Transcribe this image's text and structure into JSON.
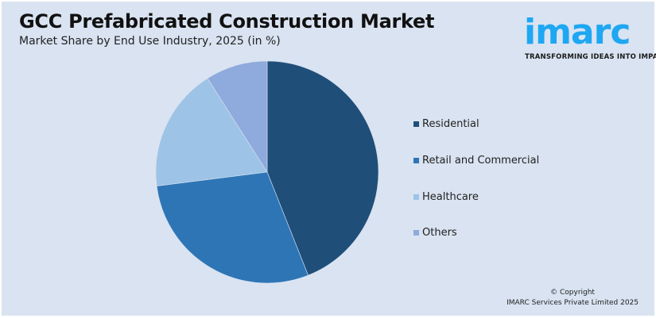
{
  "header": {
    "title": "GCC Prefabricated Construction Market",
    "subtitle": "Market Share by End Use Industry, 2025 (in %)"
  },
  "logo": {
    "word": "imarc",
    "tagline": "TRANSFORMING IDEAS INTO IMPACT",
    "color": "#1ea7f2"
  },
  "footer": {
    "line1": "© Copyright",
    "line2": "IMARC Services Private Limited 2025"
  },
  "legend": [
    {
      "label": "Residential",
      "color": "#1f4e79"
    },
    {
      "label": "Retail and Commercial",
      "color": "#2e75b6"
    },
    {
      "label": "Healthcare",
      "color": "#9dc3e6"
    },
    {
      "label": "Others",
      "color": "#8faadc"
    }
  ],
  "chart_data": {
    "type": "pie",
    "title": "GCC Prefabricated Construction Market",
    "subtitle": "Market Share by End Use Industry, 2025 (in %)",
    "categories": [
      "Residential",
      "Retail and Commercial",
      "Healthcare",
      "Others"
    ],
    "values": [
      44,
      29,
      18,
      9
    ],
    "colors": [
      "#1f4e79",
      "#2e75b6",
      "#9dc3e6",
      "#8faadc"
    ],
    "start_angle": "12 o'clock, clockwise",
    "legend_position": "right",
    "data_labels": false
  }
}
